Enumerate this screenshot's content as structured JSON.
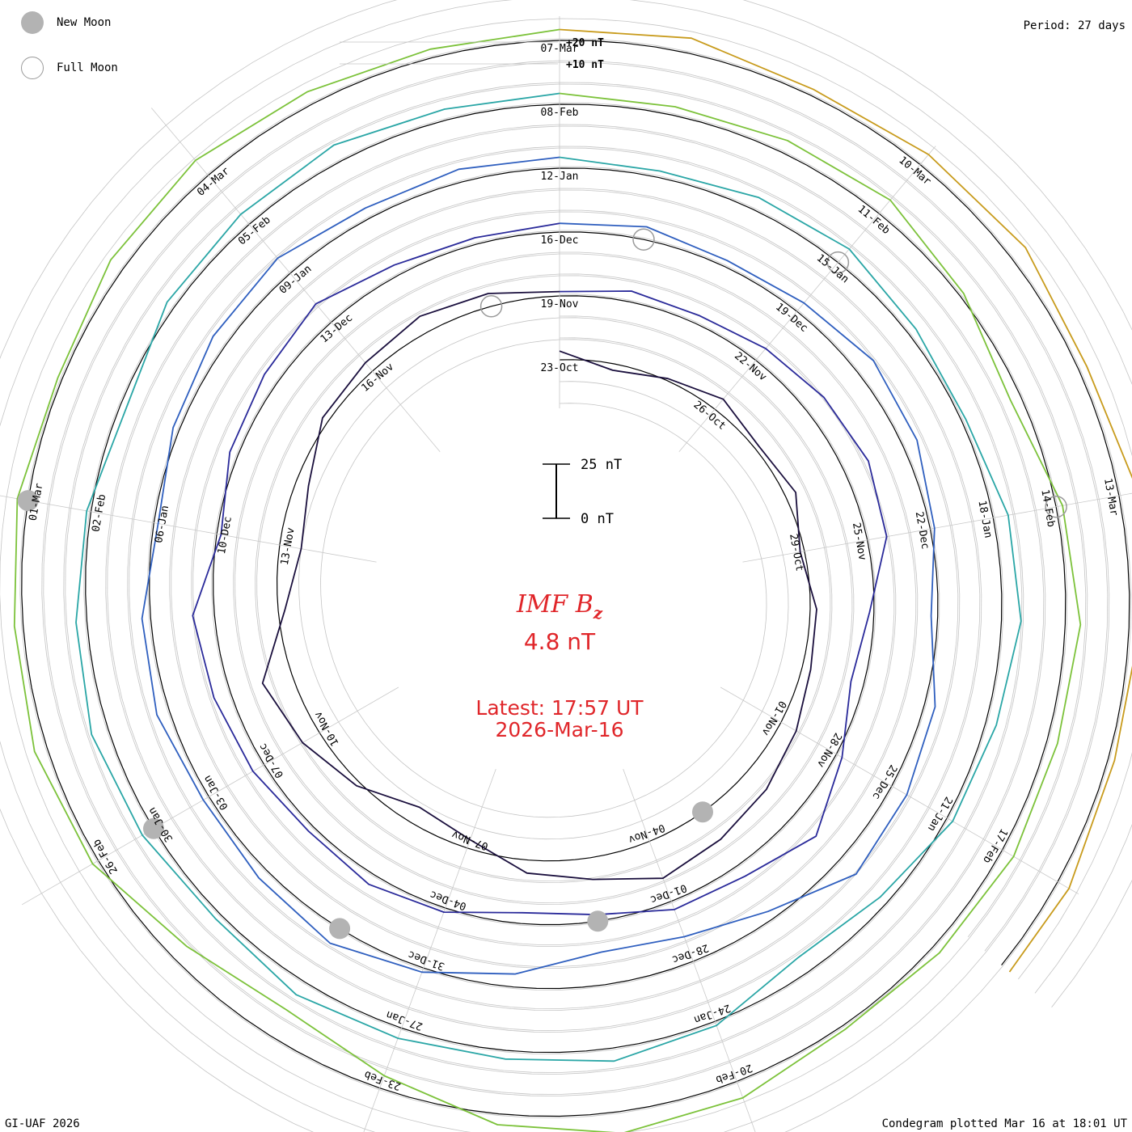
{
  "period_label": "Period: 27 days",
  "legend": {
    "new_moon": "New Moon",
    "full_moon": "Full Moon"
  },
  "credit": "GI-UAF 2026",
  "plotted_note": "Condegram plotted Mar 16 at 18:01 UT",
  "colors": {
    "accent_text": "#e0262a",
    "grid": "#b8b8b8",
    "ink": "#000000",
    "moon": "#b3b3b3"
  },
  "chart_data": {
    "type": "line",
    "subtype": "condegram-spiral",
    "title": "IMF B",
    "title_subscript": "z",
    "current_value": "4.8 nT",
    "latest_line1": "Latest: 17:57 UT",
    "latest_line2": "2026-Mar-16",
    "period_days": 27,
    "scale_bar": {
      "top_label": "25 nT",
      "bottom_label": "0 nT",
      "span_nT": 25
    },
    "ring_labels": [
      "+20 nT",
      "+10 nT"
    ],
    "ring_step_nT": 10,
    "x_unit": "days since 2025-Oct-23 00:00 UT",
    "x_range": [
      0,
      144.75
    ],
    "series": [
      {
        "name": "Rotation 1",
        "color": "#1a0f3d",
        "x": [
          0,
          1,
          2,
          3,
          4,
          5,
          6,
          7,
          8,
          9,
          10,
          11,
          12,
          13,
          14,
          15,
          16,
          17,
          18,
          19,
          20,
          21,
          22,
          23,
          24,
          25,
          26,
          27
        ],
        "y": [
          4,
          -3,
          1,
          6,
          2,
          5,
          -2,
          3,
          4,
          8,
          12,
          15,
          18,
          10,
          6,
          -4,
          -8,
          2,
          9,
          14,
          -3,
          -10,
          -6,
          3,
          5,
          8,
          6,
          2
        ]
      },
      {
        "name": "Rotation 2",
        "color": "#2a2a9a",
        "x": [
          27,
          28,
          29,
          30,
          31,
          32,
          33,
          34,
          35,
          36,
          37,
          38,
          39,
          40,
          41,
          42,
          43,
          44,
          45,
          46,
          47,
          48,
          49,
          50,
          51,
          52,
          53,
          54
        ],
        "y": [
          2,
          5,
          4,
          7,
          10,
          12,
          9,
          -2,
          -6,
          3,
          14,
          6,
          4,
          -3,
          -5,
          2,
          5,
          3,
          6,
          8,
          10,
          -2,
          4,
          7,
          11,
          5,
          3,
          4
        ]
      },
      {
        "name": "Rotation 3",
        "color": "#2f5fbf",
        "x": [
          54,
          55,
          56,
          57,
          58,
          59,
          60,
          61,
          62,
          63,
          64,
          65,
          66,
          67,
          68,
          69,
          70,
          71,
          72,
          73,
          74,
          75,
          76,
          77,
          78,
          79,
          80,
          81
        ],
        "y": [
          4,
          6,
          3,
          5,
          9,
          7,
          2,
          -3,
          5,
          8,
          10,
          -4,
          -12,
          -15,
          -6,
          2,
          8,
          5,
          3,
          6,
          4,
          -2,
          3,
          7,
          9,
          5,
          6,
          5
        ]
      },
      {
        "name": "Rotation 4",
        "color": "#2aa6a6",
        "x": [
          81,
          82,
          83,
          84,
          85,
          86,
          87,
          88,
          89,
          90,
          91,
          92,
          93,
          94,
          95,
          96,
          97,
          98,
          99,
          100,
          101,
          102,
          103,
          104,
          105,
          106,
          107,
          108
        ],
        "y": [
          5,
          3,
          6,
          8,
          4,
          2,
          7,
          9,
          5,
          3,
          -4,
          -8,
          2,
          6,
          4,
          5,
          7,
          3,
          6,
          8,
          5,
          2,
          -3,
          4,
          6,
          8,
          5,
          5
        ]
      },
      {
        "name": "Rotation 5",
        "color": "#7cc23a",
        "x": [
          108,
          109,
          110,
          111,
          112,
          113,
          114,
          115,
          116,
          117,
          118,
          119,
          120,
          121,
          122,
          123,
          124,
          125,
          126,
          127,
          128,
          129,
          130,
          131,
          132,
          133,
          134,
          135
        ],
        "y": [
          5,
          4,
          6,
          8,
          2,
          -5,
          3,
          7,
          5,
          6,
          4,
          2,
          8,
          10,
          5,
          -6,
          -14,
          -8,
          3,
          6,
          4,
          5,
          2,
          7,
          9,
          6,
          4,
          5
        ]
      },
      {
        "name": "Rotation 6",
        "color": "#c89b1c",
        "x": [
          135,
          136,
          137,
          138,
          139,
          140,
          141,
          142,
          143,
          144,
          144.75
        ],
        "y": [
          5,
          7,
          3,
          6,
          8,
          4,
          9,
          5,
          3,
          6,
          4.8
        ]
      }
    ],
    "date_labels": [
      {
        "x": 0,
        "label": "23-Oct"
      },
      {
        "x": 3,
        "label": "26-Oct"
      },
      {
        "x": 6,
        "label": "29-Oct"
      },
      {
        "x": 9,
        "label": "01-Nov"
      },
      {
        "x": 12,
        "label": "04-Nov"
      },
      {
        "x": 15,
        "label": "07-Nov"
      },
      {
        "x": 18,
        "label": "10-Nov"
      },
      {
        "x": 21,
        "label": "13-Nov"
      },
      {
        "x": 24,
        "label": "16-Nov"
      },
      {
        "x": 27,
        "label": "19-Nov"
      },
      {
        "x": 30,
        "label": "22-Nov"
      },
      {
        "x": 33,
        "label": "25-Nov"
      },
      {
        "x": 36,
        "label": "28-Nov"
      },
      {
        "x": 39,
        "label": "01-Dec"
      },
      {
        "x": 42,
        "label": "04-Dec"
      },
      {
        "x": 45,
        "label": "07-Dec"
      },
      {
        "x": 48,
        "label": "10-Dec"
      },
      {
        "x": 51,
        "label": "13-Dec"
      },
      {
        "x": 54,
        "label": "16-Dec"
      },
      {
        "x": 57,
        "label": "19-Dec"
      },
      {
        "x": 60,
        "label": "22-Dec"
      },
      {
        "x": 63,
        "label": "25-Dec"
      },
      {
        "x": 66,
        "label": "28-Dec"
      },
      {
        "x": 69,
        "label": "31-Dec"
      },
      {
        "x": 72,
        "label": "03-Jan"
      },
      {
        "x": 75,
        "label": "06-Jan"
      },
      {
        "x": 78,
        "label": "09-Jan"
      },
      {
        "x": 81,
        "label": "12-Jan"
      },
      {
        "x": 84,
        "label": "15-Jan"
      },
      {
        "x": 87,
        "label": "18-Jan"
      },
      {
        "x": 90,
        "label": "21-Jan"
      },
      {
        "x": 93,
        "label": "24-Jan"
      },
      {
        "x": 96,
        "label": "27-Jan"
      },
      {
        "x": 99,
        "label": "30-Jan"
      },
      {
        "x": 102,
        "label": "02-Feb"
      },
      {
        "x": 105,
        "label": "05-Feb"
      },
      {
        "x": 108,
        "label": "08-Feb"
      },
      {
        "x": 111,
        "label": "11-Feb"
      },
      {
        "x": 114,
        "label": "14-Feb"
      },
      {
        "x": 117,
        "label": "17-Feb"
      },
      {
        "x": 120,
        "label": "20-Feb"
      },
      {
        "x": 123,
        "label": "23-Feb"
      },
      {
        "x": 126,
        "label": "26-Feb"
      },
      {
        "x": 129,
        "label": "01-Mar"
      },
      {
        "x": 132,
        "label": "04-Mar"
      },
      {
        "x": 135,
        "label": "07-Mar"
      },
      {
        "x": 138,
        "label": "10-Mar"
      },
      {
        "x": 141,
        "label": "13-Mar"
      }
    ],
    "moon_phases": [
      {
        "x": 11,
        "phase": "new"
      },
      {
        "x": 26,
        "phase": "full"
      },
      {
        "x": 40,
        "phase": "new"
      },
      {
        "x": 55,
        "phase": "full"
      },
      {
        "x": 70,
        "phase": "new"
      },
      {
        "x": 84,
        "phase": "full"
      },
      {
        "x": 99,
        "phase": "new"
      },
      {
        "x": 114,
        "phase": "full"
      },
      {
        "x": 129,
        "phase": "new"
      }
    ]
  }
}
